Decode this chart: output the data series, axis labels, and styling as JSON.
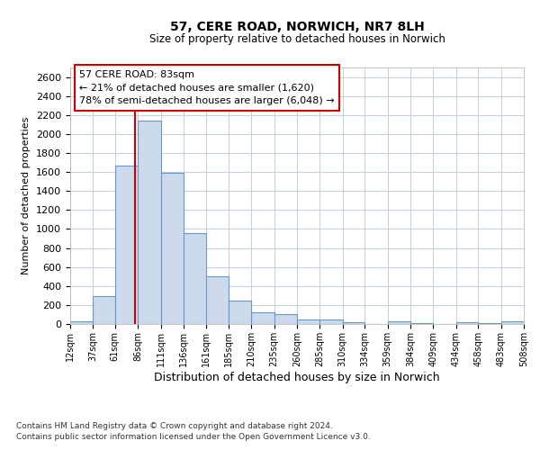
{
  "title": "57, CERE ROAD, NORWICH, NR7 8LH",
  "subtitle": "Size of property relative to detached houses in Norwich",
  "xlabel": "Distribution of detached houses by size in Norwich",
  "ylabel": "Number of detached properties",
  "footnote1": "Contains HM Land Registry data © Crown copyright and database right 2024.",
  "footnote2": "Contains public sector information licensed under the Open Government Licence v3.0.",
  "annotation_title": "57 CERE ROAD: 83sqm",
  "annotation_line1": "← 21% of detached houses are smaller (1,620)",
  "annotation_line2": "78% of semi-detached houses are larger (6,048) →",
  "bar_color": "#ccdaeb",
  "bar_edge_color": "#6699cc",
  "grid_color": "#c5d0e0",
  "vline_color": "#cc0000",
  "annotation_box_edge_color": "#cc0000",
  "subject_size": 83,
  "bin_edges": [
    12,
    37,
    61,
    86,
    111,
    136,
    161,
    185,
    210,
    235,
    260,
    285,
    310,
    334,
    359,
    384,
    409,
    434,
    458,
    483,
    508
  ],
  "bar_heights": [
    25,
    295,
    1670,
    2140,
    1590,
    960,
    500,
    245,
    120,
    100,
    50,
    50,
    20,
    0,
    30,
    5,
    0,
    20,
    5,
    30
  ],
  "ylim": [
    0,
    2700
  ],
  "yticks": [
    0,
    200,
    400,
    600,
    800,
    1000,
    1200,
    1400,
    1600,
    1800,
    2000,
    2200,
    2400,
    2600
  ]
}
